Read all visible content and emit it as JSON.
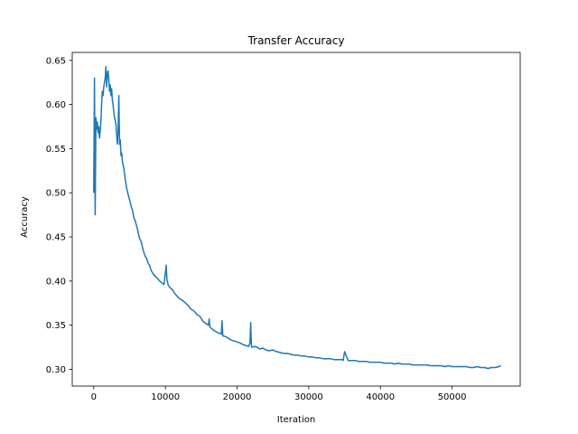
{
  "chart_data": {
    "type": "line",
    "title": "Transfer Accuracy",
    "xlabel": "Iteration",
    "ylabel": "Accuracy",
    "xlim": [
      -3000,
      59500
    ],
    "ylim": [
      0.281,
      0.659
    ],
    "xticks": [
      0,
      10000,
      20000,
      30000,
      40000,
      50000
    ],
    "xtick_labels": [
      "0",
      "10000",
      "20000",
      "30000",
      "40000",
      "50000"
    ],
    "yticks": [
      0.3,
      0.35,
      0.4,
      0.45,
      0.5,
      0.55,
      0.6,
      0.65
    ],
    "ytick_labels": [
      "0.30",
      "0.35",
      "0.40",
      "0.45",
      "0.50",
      "0.55",
      "0.60",
      "0.65"
    ],
    "grid": false,
    "line_color": "#1f77b4",
    "series": [
      {
        "x": [
          0,
          100,
          200,
          300,
          400,
          500,
          600,
          700,
          800,
          900,
          1000,
          1100,
          1200,
          1300,
          1400,
          1500,
          1600,
          1700,
          1800,
          1900,
          2000,
          2100,
          2200,
          2300,
          2400,
          2500,
          2600,
          2700,
          2800,
          2900,
          3000,
          3100,
          3200,
          3300,
          3400,
          3500,
          3600,
          3700,
          3800,
          3900,
          4000,
          4200,
          4400,
          4600,
          4800,
          5000,
          5200,
          5400,
          5600,
          5800,
          6000,
          6200,
          6400,
          6600,
          6800,
          7000,
          7200,
          7400,
          7600,
          7800,
          8000,
          8300,
          8600,
          8900,
          9200,
          9500,
          9800,
          10000,
          10100,
          10200,
          10400,
          10700,
          11000,
          11300,
          11600,
          12000,
          12400,
          12800,
          13200,
          13600,
          14000,
          14400,
          14800,
          15200,
          15600,
          16000,
          16100,
          16200,
          16600,
          17000,
          17400,
          17800,
          17900,
          18000,
          18400,
          18800,
          19200,
          19600,
          20000,
          20400,
          20800,
          21200,
          21600,
          21800,
          21900,
          22000,
          22400,
          22800,
          23200,
          23600,
          24000,
          24500,
          25000,
          25500,
          26000,
          26500,
          27000,
          27500,
          28000,
          28500,
          29000,
          29500,
          30000,
          30500,
          31000,
          31500,
          32000,
          32500,
          33000,
          33500,
          34000,
          34500,
          34700,
          34800,
          35000,
          35500,
          36000,
          36500,
          37000,
          37500,
          38000,
          38500,
          39000,
          39500,
          40000,
          40500,
          41000,
          41500,
          42000,
          42500,
          43000,
          43500,
          44000,
          44500,
          45000,
          45500,
          46000,
          46500,
          47000,
          47500,
          48000,
          48500,
          49000,
          49500,
          50000,
          50500,
          51000,
          51500,
          52000,
          52500,
          53000,
          53500,
          54000,
          54500,
          55000,
          55500,
          56000,
          56500,
          56800
        ],
        "y": [
          0.5,
          0.63,
          0.475,
          0.585,
          0.572,
          0.58,
          0.568,
          0.575,
          0.562,
          0.57,
          0.58,
          0.6,
          0.615,
          0.61,
          0.62,
          0.625,
          0.63,
          0.643,
          0.62,
          0.635,
          0.638,
          0.628,
          0.615,
          0.622,
          0.61,
          0.618,
          0.605,
          0.6,
          0.592,
          0.585,
          0.582,
          0.578,
          0.565,
          0.555,
          0.57,
          0.61,
          0.555,
          0.56,
          0.542,
          0.545,
          0.535,
          0.528,
          0.515,
          0.505,
          0.498,
          0.492,
          0.485,
          0.48,
          0.472,
          0.468,
          0.462,
          0.455,
          0.448,
          0.445,
          0.438,
          0.432,
          0.428,
          0.425,
          0.42,
          0.418,
          0.412,
          0.408,
          0.405,
          0.403,
          0.4,
          0.398,
          0.396,
          0.41,
          0.418,
          0.402,
          0.395,
          0.392,
          0.39,
          0.386,
          0.383,
          0.38,
          0.378,
          0.375,
          0.372,
          0.368,
          0.366,
          0.362,
          0.36,
          0.355,
          0.352,
          0.35,
          0.357,
          0.348,
          0.345,
          0.343,
          0.341,
          0.34,
          0.355,
          0.338,
          0.337,
          0.335,
          0.333,
          0.332,
          0.331,
          0.33,
          0.328,
          0.327,
          0.326,
          0.33,
          0.353,
          0.325,
          0.326,
          0.325,
          0.323,
          0.324,
          0.322,
          0.321,
          0.322,
          0.32,
          0.319,
          0.318,
          0.318,
          0.317,
          0.316,
          0.316,
          0.315,
          0.315,
          0.314,
          0.314,
          0.313,
          0.313,
          0.312,
          0.312,
          0.312,
          0.311,
          0.311,
          0.311,
          0.311,
          0.31,
          0.32,
          0.31,
          0.31,
          0.31,
          0.309,
          0.309,
          0.309,
          0.308,
          0.308,
          0.308,
          0.308,
          0.307,
          0.307,
          0.307,
          0.306,
          0.307,
          0.306,
          0.306,
          0.306,
          0.305,
          0.305,
          0.305,
          0.305,
          0.305,
          0.304,
          0.304,
          0.304,
          0.304,
          0.303,
          0.304,
          0.303,
          0.303,
          0.303,
          0.303,
          0.303,
          0.302,
          0.302,
          0.303,
          0.302,
          0.302,
          0.301,
          0.302,
          0.302,
          0.303,
          0.304
        ]
      }
    ]
  }
}
